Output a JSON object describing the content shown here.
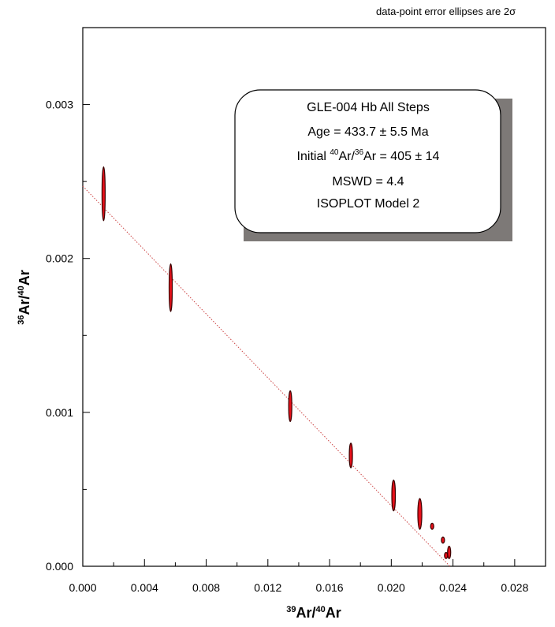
{
  "note": "data-point error ellipses are 2σ",
  "chart_data": {
    "type": "scatter",
    "subtype": "isochron with error ellipses",
    "xlabel": {
      "sup": "39",
      "a": "Ar/",
      "sup2": "40",
      "b": "Ar"
    },
    "ylabel": {
      "sup": "36",
      "a": "Ar/",
      "sup2": "40",
      "b": "Ar"
    },
    "xlim": [
      0.0,
      0.03
    ],
    "ylim": [
      0.0,
      0.0035
    ],
    "x_ticks": [
      "0.000",
      "0.004",
      "0.008",
      "0.012",
      "0.016",
      "0.020",
      "0.024",
      "0.028"
    ],
    "y_ticks": [
      "0.000",
      "0.001",
      "0.002",
      "0.003"
    ],
    "grid": false,
    "ellipse_color": "#e8101a",
    "ellipse_edge": "#3a0000",
    "regression_line": {
      "x": [
        0.0,
        0.0238
      ],
      "y": [
        0.00247,
        0.0
      ]
    },
    "points": [
      {
        "x": 0.00135,
        "y": 0.00242,
        "sx": 6e-05,
        "sy": 0.000175
      },
      {
        "x": 0.0057,
        "y": 0.00181,
        "sx": 8e-05,
        "sy": 0.000155
      },
      {
        "x": 0.01345,
        "y": 0.00104,
        "sx": 0.0001,
        "sy": 0.0001
      },
      {
        "x": 0.01738,
        "y": 0.00072,
        "sx": 0.0001,
        "sy": 8e-05
      },
      {
        "x": 0.02015,
        "y": 0.00046,
        "sx": 0.000115,
        "sy": 0.0001
      },
      {
        "x": 0.02185,
        "y": 0.00034,
        "sx": 0.00013,
        "sy": 0.0001
      },
      {
        "x": 0.02265,
        "y": 0.00026,
        "sx": 6e-05,
        "sy": 2e-05
      },
      {
        "x": 0.02335,
        "y": 0.00017,
        "sx": 6e-05,
        "sy": 2e-05
      },
      {
        "x": 0.02375,
        "y": 9e-05,
        "sx": 0.0001,
        "sy": 4e-05
      },
      {
        "x": 0.02355,
        "y": 7e-05,
        "sx": 5e-05,
        "sy": 2e-05
      }
    ],
    "info_box": {
      "line1": "GLE-004 Hb All Steps",
      "line2": "Age = 433.7 ± 5.5 Ma",
      "line3_a": "Initial ",
      "line3_sup1": "40",
      "line3_b": "Ar/",
      "line3_sup2": "36",
      "line3_c": "Ar = 405 ± 14",
      "line4": "MSWD = 4.4",
      "line5": "ISOPLOT Model 2"
    }
  }
}
